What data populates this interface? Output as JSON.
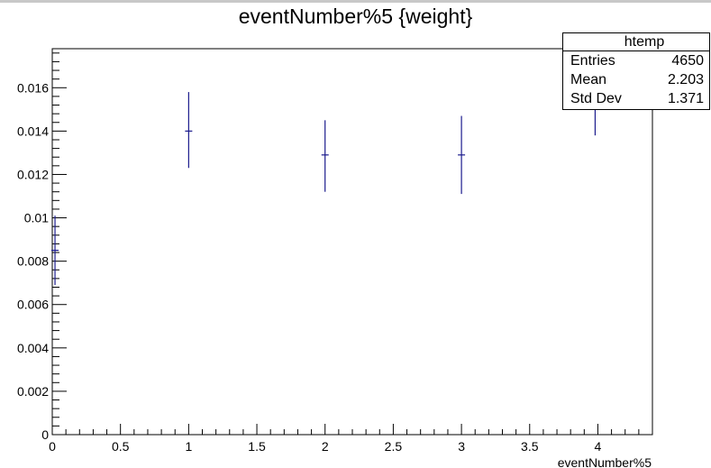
{
  "chart_data": {
    "type": "scatter",
    "title": "eventNumber%5 {weight}",
    "xlabel": "eventNumber%5",
    "ylabel": "",
    "xlim": [
      0,
      4.4
    ],
    "ylim": [
      0,
      0.0178
    ],
    "x_ticks": [
      {
        "value": 0,
        "label": "0"
      },
      {
        "value": 0.5,
        "label": "0.5"
      },
      {
        "value": 1,
        "label": "1"
      },
      {
        "value": 1.5,
        "label": "1.5"
      },
      {
        "value": 2,
        "label": "2"
      },
      {
        "value": 2.5,
        "label": "2.5"
      },
      {
        "value": 3,
        "label": "3"
      },
      {
        "value": 3.5,
        "label": "3.5"
      },
      {
        "value": 4,
        "label": "4"
      }
    ],
    "y_ticks": [
      {
        "value": 0,
        "label": "0"
      },
      {
        "value": 0.002,
        "label": "0.002"
      },
      {
        "value": 0.004,
        "label": "0.004"
      },
      {
        "value": 0.006,
        "label": "0.006"
      },
      {
        "value": 0.008,
        "label": "0.008"
      },
      {
        "value": 0.01,
        "label": "0.01"
      },
      {
        "value": 0.012,
        "label": "0.012"
      },
      {
        "value": 0.014,
        "label": "0.014"
      },
      {
        "value": 0.016,
        "label": "0.016"
      }
    ],
    "series": [
      {
        "points": [
          {
            "x": 0.02,
            "y": 0.0085,
            "y_low": 0.0069,
            "y_high": 0.0101
          },
          {
            "x": 1,
            "y": 0.014,
            "y_low": 0.0123,
            "y_high": 0.0158
          },
          {
            "x": 2,
            "y": 0.0129,
            "y_low": 0.0112,
            "y_high": 0.0145
          },
          {
            "x": 3,
            "y": 0.0129,
            "y_low": 0.0111,
            "y_high": 0.0147
          },
          {
            "x": 3.98,
            "y": 0.0155,
            "y_low": 0.0138,
            "y_high": 0.0165
          }
        ]
      }
    ],
    "grid": false,
    "marker_color": "#1a1a8c"
  },
  "stats": {
    "title": "htemp",
    "rows": [
      {
        "label": "Entries",
        "value": "4650"
      },
      {
        "label": "Mean",
        "value": "2.203"
      },
      {
        "label": "Std Dev",
        "value": "1.371"
      }
    ]
  }
}
